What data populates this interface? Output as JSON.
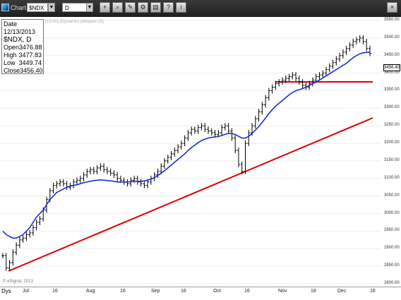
{
  "window": {
    "title": "Chart"
  },
  "toolbar": {
    "symbol": "$NDX",
    "interval": "D",
    "buttons": [
      "crosshair",
      "zoom",
      "draw",
      "settings",
      "print",
      "help",
      "info",
      "close"
    ]
  },
  "info_box": {
    "date": "Date 12/13/2013",
    "title": "$NDX, D",
    "rows": [
      {
        "label": "Open",
        "value": "3476.88"
      },
      {
        "label": "High",
        "value": "3477.83"
      },
      {
        "label": "Low",
        "value": "3449.74"
      },
      {
        "label": "Close",
        "value": "3456.40"
      }
    ]
  },
  "study_label": "(15:00) (Dynamic) (delayed 15)",
  "copyright": "© eSignal, 2013",
  "last_price": "3456.40",
  "x_axis": {
    "unit": "Dys",
    "labels": [
      "Jul",
      "16",
      "Aug",
      "16",
      "Sep",
      "16",
      "Oct",
      "16",
      "Nov",
      "18",
      "Dec",
      "16"
    ]
  },
  "y_axis": {
    "labels": [
      "3550.00",
      "3500.00",
      "3450.00",
      "3400.00",
      "3350.00",
      "3300.00",
      "3250.00",
      "3200.00",
      "3150.00",
      "3100.00",
      "3050.00",
      "3000.00",
      "2950.00",
      "2900.00",
      "2850.00",
      "2800.00"
    ]
  },
  "colors": {
    "price_bars": "#000000",
    "moving_average": "#1a2fd6",
    "trendline": "#e00000",
    "support": "#e00000"
  },
  "chart_data": {
    "type": "line",
    "title": "$NDX, D",
    "ylim": [
      2800,
      3550
    ],
    "series": [
      {
        "name": "$NDX",
        "values": [
          2880,
          2845,
          2860,
          2890,
          2910,
          2925,
          2930,
          2940,
          2945,
          2960,
          2975,
          2985,
          3010,
          3040,
          3065,
          3080,
          3085,
          3090,
          3085,
          3075,
          3080,
          3090,
          3095,
          3100,
          3110,
          3120,
          3125,
          3120,
          3130,
          3135,
          3125,
          3120,
          3115,
          3110,
          3100,
          3095,
          3090,
          3085,
          3095,
          3100,
          3090,
          3085,
          3080,
          3090,
          3100,
          3110,
          3120,
          3135,
          3150,
          3160,
          3170,
          3180,
          3190,
          3200,
          3215,
          3230,
          3240,
          3235,
          3245,
          3250,
          3240,
          3235,
          3230,
          3225,
          3230,
          3245,
          3250,
          3235,
          3215,
          3180,
          3140,
          3120,
          3200,
          3230,
          3250,
          3270,
          3290,
          3310,
          3330,
          3350,
          3360,
          3370,
          3375,
          3380,
          3385,
          3390,
          3395,
          3385,
          3375,
          3365,
          3360,
          3370,
          3380,
          3390,
          3395,
          3400,
          3410,
          3420,
          3430,
          3440,
          3450,
          3460,
          3470,
          3480,
          3490,
          3495,
          3500,
          3490,
          3470,
          3456
        ]
      },
      {
        "name": "MA",
        "values": [
          2950,
          2940,
          2935,
          2930,
          2930,
          2935,
          2940,
          2950,
          2960,
          2975,
          2990,
          3000,
          3010,
          3025,
          3040,
          3050,
          3060,
          3065,
          3070,
          3075,
          3078,
          3080,
          3082,
          3085,
          3088,
          3090,
          3092,
          3094,
          3095,
          3096,
          3095,
          3094,
          3093,
          3092,
          3090,
          3090,
          3090,
          3090,
          3091,
          3092,
          3092,
          3092,
          3093,
          3095,
          3098,
          3102,
          3108,
          3115,
          3122,
          3130,
          3138,
          3146,
          3154,
          3162,
          3170,
          3180,
          3188,
          3195,
          3202,
          3208,
          3212,
          3215,
          3217,
          3218,
          3220,
          3222,
          3226,
          3228,
          3228,
          3225,
          3220,
          3215,
          3215,
          3220,
          3228,
          3238,
          3248,
          3260,
          3272,
          3285,
          3296,
          3306,
          3314,
          3322,
          3330,
          3338,
          3345,
          3350,
          3353,
          3356,
          3360,
          3365,
          3370,
          3375,
          3380,
          3386,
          3392,
          3398,
          3404,
          3410,
          3416,
          3422,
          3428,
          3436,
          3444,
          3450,
          3455,
          3458,
          3459,
          3460
        ]
      }
    ]
  }
}
